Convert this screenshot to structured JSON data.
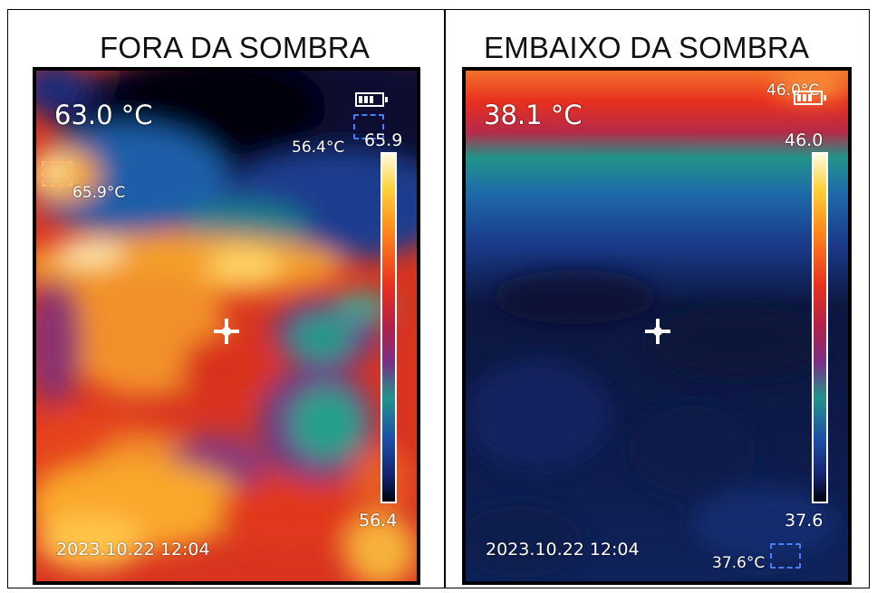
{
  "left": {
    "caption": "FORA DA SOMBRA",
    "temp_center": "63.0 °C",
    "max_spot": "65.9°C",
    "min_spot": "56.4°C",
    "scale_max": "65.9",
    "scale_min": "56.4",
    "timestamp": "2023.10.22   12:04"
  },
  "right": {
    "caption": "EMBAIXO DA SOMBRA",
    "temp_center": "38.1 °C",
    "max_spot": "46.0°C",
    "scale_max": "46.0",
    "scale_min": "37.6",
    "min_spot": "37.6°C",
    "timestamp": "2023.10.22   12:04"
  },
  "colors": {
    "hot": "#ff9a1e",
    "warm": "#e8301e",
    "cool": "#1e4fa8",
    "cold": "#0a0f2e",
    "teal": "#22948a",
    "crosshair_marker": "#4a7dff"
  }
}
